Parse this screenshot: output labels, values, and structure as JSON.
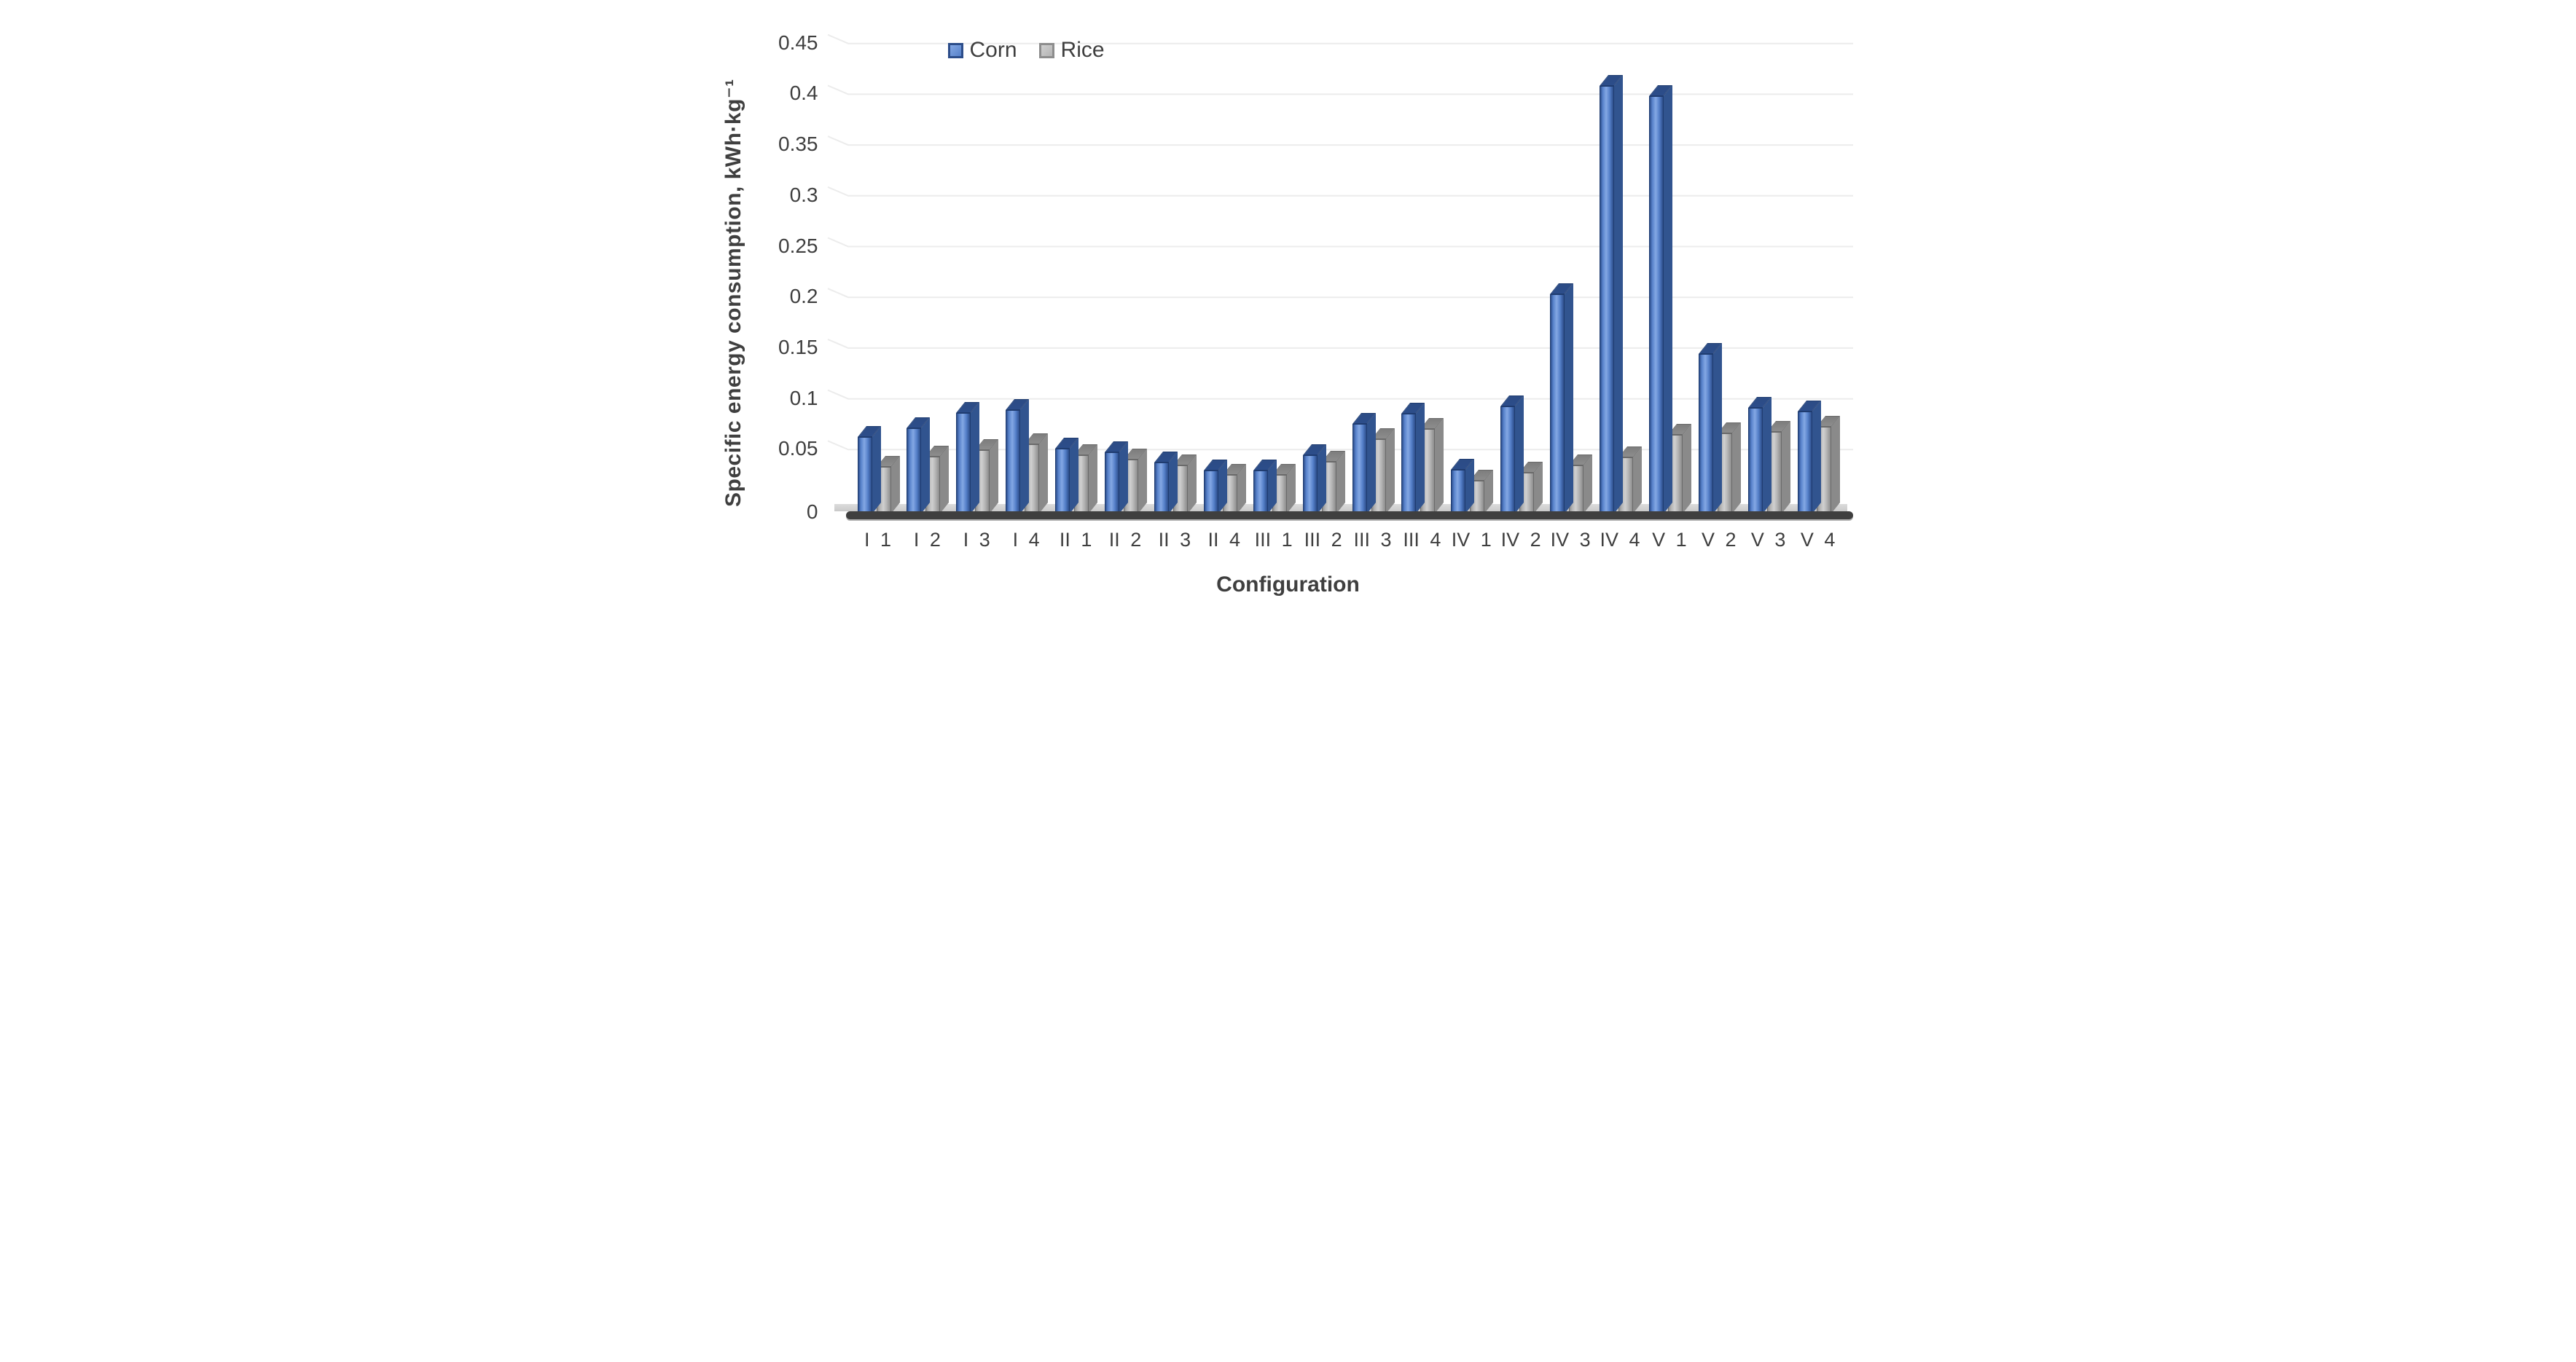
{
  "chart_data": {
    "type": "bar",
    "title": "",
    "xlabel": "Configuration",
    "ylabel": "Specific energy consumption, kWh·kg⁻¹",
    "categories": [
      "I 1",
      "I 2",
      "I 3",
      "I 4",
      "II 1",
      "II 2",
      "II 3",
      "II 4",
      "III 1",
      "III 2",
      "III 3",
      "III 4",
      "IV 1",
      "IV 2",
      "IV 3",
      "IV 4",
      "V 1",
      "V 2",
      "V 3",
      "V 4"
    ],
    "series": [
      {
        "name": "Corn",
        "color": "#4472c4",
        "values": [
          0.073,
          0.082,
          0.097,
          0.1,
          0.062,
          0.058,
          0.048,
          0.04,
          0.04,
          0.055,
          0.086,
          0.096,
          0.041,
          0.103,
          0.214,
          0.419,
          0.409,
          0.155,
          0.102,
          0.098
        ],
        "style": {
          "front_edge": "#2c4d8a",
          "front_mid": "#5580c9",
          "front_light": "#84a8e4",
          "side": "#31548f",
          "cap": "#2c4c85",
          "border": "#1f3c70"
        }
      },
      {
        "name": "Rice",
        "color": "#a6a6a6",
        "values": [
          0.044,
          0.054,
          0.06,
          0.066,
          0.055,
          0.051,
          0.045,
          0.036,
          0.036,
          0.049,
          0.071,
          0.081,
          0.03,
          0.038,
          0.045,
          0.053,
          0.075,
          0.077,
          0.078,
          0.083
        ],
        "style": {
          "front_edge": "#8d8d8d",
          "front_mid": "#b3b3b3",
          "front_light": "#d0d0d0",
          "side": "#8a8a8a",
          "cap": "#7d7d7d",
          "border": "#6a6a6a"
        }
      }
    ],
    "ylim": [
      0,
      0.45
    ],
    "ytick_step": 0.05,
    "ytick_labels": [
      "0",
      "0.05",
      "0.1",
      "0.15",
      "0.2",
      "0.25",
      "0.3",
      "0.35",
      "0.4",
      "0.45"
    ],
    "grid": "horizontal-light",
    "legend_position": "top-inside-left",
    "effect": "pseudo-3d-columns"
  },
  "styles": {
    "background": "#ffffff",
    "text": "#3f3f3f",
    "gridline": "#ececec",
    "floor_dark": "#3f3f3f",
    "floor_light": "#c9c9c9",
    "floor_shadow": "#b0b0b0"
  }
}
